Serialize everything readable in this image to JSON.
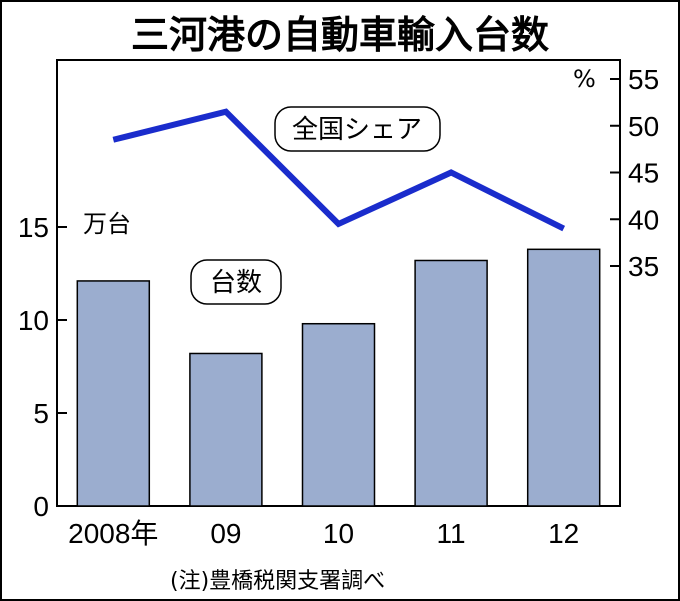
{
  "chart_data": {
    "type": "bar+line",
    "title": "三河港の自動車輸入台数",
    "categories": [
      "2008年",
      "09",
      "10",
      "11",
      "12"
    ],
    "bar_series": {
      "name": "台数",
      "unit": "万台",
      "values": [
        12.1,
        8.2,
        9.8,
        13.2,
        13.8
      ],
      "ylim": [
        0,
        15
      ],
      "yticks": [
        0,
        5,
        10,
        15
      ]
    },
    "line_series": {
      "name": "全国シェア",
      "unit": "%",
      "values": [
        48.5,
        51.5,
        39.5,
        45.0,
        39.0
      ],
      "ylim": [
        35,
        55
      ],
      "yticks": [
        35,
        40,
        45,
        50,
        55
      ]
    },
    "note": "(注)豊橋税関支署調べ",
    "colors": {
      "bar_fill": "#9badcf",
      "line": "#1a2ccc",
      "frame": "#000000"
    }
  }
}
